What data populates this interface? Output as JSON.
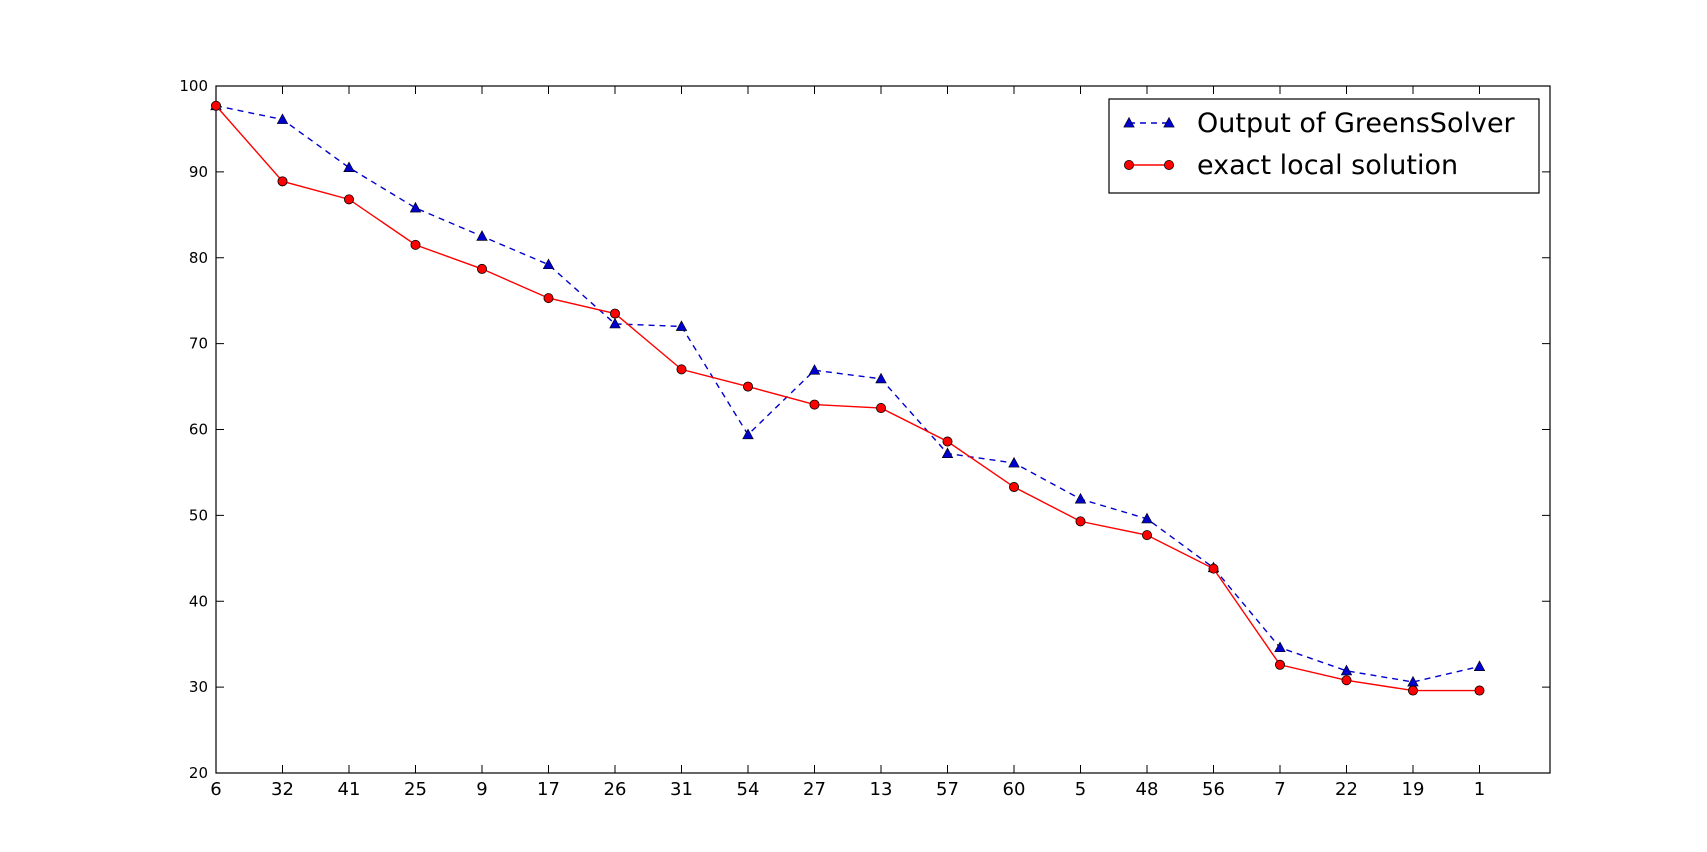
{
  "chart_data": {
    "type": "line",
    "categories": [
      "6",
      "32",
      "41",
      "25",
      "9",
      "17",
      "26",
      "31",
      "54",
      "27",
      "13",
      "57",
      "60",
      "5",
      "48",
      "56",
      "7",
      "22",
      "19",
      "1"
    ],
    "ylim": [
      20,
      100
    ],
    "yticks": [
      20,
      30,
      40,
      50,
      60,
      70,
      80,
      90,
      100
    ],
    "series": [
      {
        "name": "Output of GreensSolver",
        "color": "#0000cc",
        "style": "dashed",
        "marker": "triangle",
        "values": [
          97.7,
          96.1,
          90.5,
          85.8,
          82.5,
          79.2,
          72.3,
          72.0,
          59.4,
          66.9,
          65.9,
          57.2,
          56.1,
          51.9,
          49.6,
          43.9,
          34.6,
          31.9,
          30.6,
          32.4
        ]
      },
      {
        "name": "exact local solution",
        "color": "#ff0000",
        "style": "solid",
        "marker": "circle",
        "values": [
          97.7,
          88.9,
          86.8,
          81.5,
          78.7,
          75.3,
          73.5,
          67.0,
          65.0,
          62.9,
          62.5,
          58.6,
          53.3,
          49.3,
          47.7,
          43.8,
          32.6,
          30.8,
          29.6,
          29.6
        ]
      }
    ],
    "title": "",
    "xlabel": "",
    "ylabel": "",
    "grid": false,
    "legend_position": "top-right"
  }
}
